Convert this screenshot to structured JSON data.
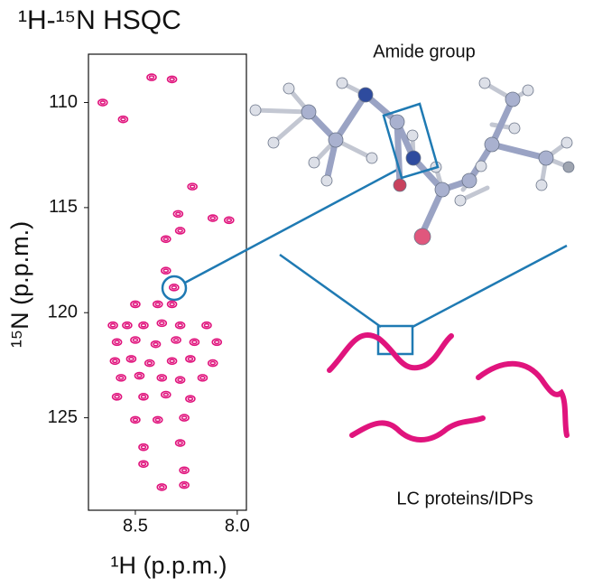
{
  "chart_data": {
    "type": "scatter",
    "title": "¹H-¹⁵N HSQC",
    "x_label": "¹H (p.p.m.)",
    "y_label": "¹⁵N (p.p.m.)",
    "x": [
      8.66,
      8.56,
      8.42,
      8.32,
      8.22,
      8.29,
      8.12,
      8.04,
      8.28,
      8.35,
      8.35,
      8.31,
      8.39,
      8.5,
      8.32,
      8.61,
      8.54,
      8.46,
      8.37,
      8.28,
      8.15,
      8.59,
      8.5,
      8.4,
      8.3,
      8.21,
      8.1,
      8.6,
      8.52,
      8.43,
      8.32,
      8.23,
      8.12,
      8.57,
      8.48,
      8.37,
      8.28,
      8.17,
      8.59,
      8.46,
      8.35,
      8.23,
      8.5,
      8.39,
      8.26,
      8.46,
      8.28,
      8.46,
      8.26,
      8.37,
      8.26
    ],
    "values": [
      110.0,
      110.8,
      108.8,
      108.9,
      114.0,
      115.3,
      115.5,
      115.6,
      116.1,
      116.5,
      118.0,
      118.8,
      119.6,
      119.6,
      119.6,
      120.6,
      120.6,
      120.6,
      120.5,
      120.6,
      120.6,
      121.4,
      121.3,
      121.5,
      121.3,
      121.4,
      121.4,
      122.3,
      122.2,
      122.4,
      122.3,
      122.2,
      122.4,
      123.1,
      123.0,
      123.1,
      123.2,
      123.1,
      124.0,
      124.0,
      123.9,
      124.1,
      125.1,
      125.1,
      125.0,
      126.4,
      126.2,
      127.2,
      127.5,
      128.3,
      128.2
    ],
    "color": "#e0147d",
    "xlim": [
      8.73,
      7.955
    ],
    "ylim": [
      107.7,
      129.4
    ],
    "xticks": [
      8.5,
      {
        "value": 8.0,
        "label": "8.0"
      }
    ],
    "yticks": [
      110,
      115,
      120,
      125
    ]
  },
  "annotations": {
    "amide": "Amide group",
    "proteins": "LC proteins/IDPs"
  }
}
